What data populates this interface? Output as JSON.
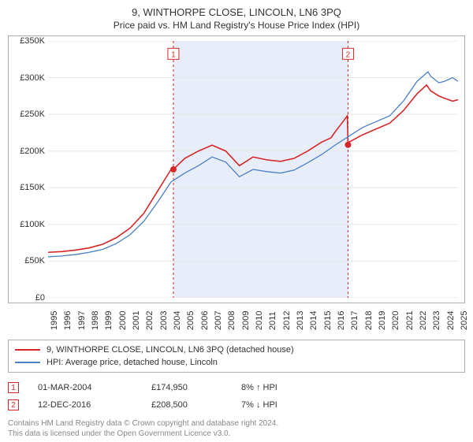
{
  "title": "9, WINTHORPE CLOSE, LINCOLN, LN6 3PQ",
  "subtitle": "Price paid vs. HM Land Registry's House Price Index (HPI)",
  "chart": {
    "background_color": "#ffffff",
    "border_color": "#b0b0b0",
    "grid_color": "#e5e5e5",
    "label_fontsize": 11,
    "x": {
      "min": 1995,
      "max": 2025,
      "ticks": [
        1995,
        1996,
        1997,
        1998,
        1999,
        2000,
        2001,
        2002,
        2003,
        2004,
        2005,
        2006,
        2007,
        2008,
        2009,
        2010,
        2011,
        2012,
        2013,
        2014,
        2015,
        2016,
        2017,
        2018,
        2019,
        2020,
        2021,
        2022,
        2023,
        2024,
        2025
      ]
    },
    "y": {
      "min": 0,
      "max": 350000,
      "ticks": [
        0,
        50000,
        100000,
        150000,
        200000,
        250000,
        300000,
        350000
      ],
      "tick_labels": [
        "£0",
        "£50K",
        "£100K",
        "£150K",
        "£200K",
        "£250K",
        "£300K",
        "£350K"
      ]
    },
    "shaded_span": {
      "from": 2004.17,
      "to": 2016.95,
      "fill": "#e8eef9"
    },
    "series": [
      {
        "name": "property",
        "color": "#d62728",
        "width": 1.6,
        "points": [
          [
            1995,
            62000
          ],
          [
            1996,
            63000
          ],
          [
            1997,
            65000
          ],
          [
            1998,
            68000
          ],
          [
            1999,
            73000
          ],
          [
            2000,
            82000
          ],
          [
            2001,
            95000
          ],
          [
            2002,
            115000
          ],
          [
            2003,
            145000
          ],
          [
            2004,
            175000
          ],
          [
            2004.17,
            175000
          ],
          [
            2005,
            190000
          ],
          [
            2006,
            200000
          ],
          [
            2007,
            208000
          ],
          [
            2008,
            200000
          ],
          [
            2009,
            180000
          ],
          [
            2010,
            192000
          ],
          [
            2011,
            188000
          ],
          [
            2012,
            186000
          ],
          [
            2013,
            190000
          ],
          [
            2014,
            200000
          ],
          [
            2015,
            212000
          ],
          [
            2015.7,
            218000
          ],
          [
            2016,
            226000
          ],
          [
            2016.5,
            238000
          ],
          [
            2016.9,
            248000
          ],
          [
            2016.95,
            208500
          ],
          [
            2017,
            212000
          ],
          [
            2018,
            222000
          ],
          [
            2019,
            230000
          ],
          [
            2020,
            238000
          ],
          [
            2021,
            255000
          ],
          [
            2022,
            278000
          ],
          [
            2022.7,
            290000
          ],
          [
            2023,
            282000
          ],
          [
            2023.6,
            275000
          ],
          [
            2024,
            272000
          ],
          [
            2024.6,
            268000
          ],
          [
            2025,
            270000
          ]
        ]
      },
      {
        "name": "hpi",
        "color": "#4a7ec9",
        "width": 1.3,
        "points": [
          [
            1995,
            56000
          ],
          [
            1996,
            57000
          ],
          [
            1997,
            59000
          ],
          [
            1998,
            62000
          ],
          [
            1999,
            66000
          ],
          [
            2000,
            74000
          ],
          [
            2001,
            86000
          ],
          [
            2002,
            104000
          ],
          [
            2003,
            130000
          ],
          [
            2004,
            158000
          ],
          [
            2005,
            170000
          ],
          [
            2006,
            180000
          ],
          [
            2007,
            192000
          ],
          [
            2008,
            185000
          ],
          [
            2009,
            165000
          ],
          [
            2010,
            175000
          ],
          [
            2011,
            172000
          ],
          [
            2012,
            170000
          ],
          [
            2013,
            174000
          ],
          [
            2014,
            184000
          ],
          [
            2015,
            195000
          ],
          [
            2016,
            208000
          ],
          [
            2017,
            220000
          ],
          [
            2018,
            232000
          ],
          [
            2019,
            240000
          ],
          [
            2020,
            248000
          ],
          [
            2021,
            268000
          ],
          [
            2022,
            295000
          ],
          [
            2022.8,
            308000
          ],
          [
            2023,
            302000
          ],
          [
            2023.6,
            293000
          ],
          [
            2024,
            295000
          ],
          [
            2024.6,
            300000
          ],
          [
            2025,
            295000
          ]
        ]
      }
    ],
    "markers": [
      {
        "x": 2004.17,
        "y": 174950,
        "label": "1",
        "border": "#d62728",
        "dash_color": "#d62728",
        "label_y": 340000
      },
      {
        "x": 2016.95,
        "y": 208500,
        "label": "2",
        "border": "#d62728",
        "dash_color": "#d62728",
        "label_y": 340000
      }
    ],
    "marker_dot": {
      "radius": 4,
      "fill": "#d62728"
    },
    "marker_box": {
      "size": 14,
      "fill": "#ffffff",
      "font_size": 10
    }
  },
  "legend": [
    {
      "color": "#d62728",
      "label": "9, WINTHORPE CLOSE, LINCOLN, LN6 3PQ (detached house)"
    },
    {
      "color": "#4a7ec9",
      "label": "HPI: Average price, detached house, Lincoln"
    }
  ],
  "sales": [
    {
      "marker": "1",
      "marker_border": "#d62728",
      "date": "01-MAR-2004",
      "price": "£174,950",
      "pct": "8% ↑ HPI"
    },
    {
      "marker": "2",
      "marker_border": "#d62728",
      "date": "12-DEC-2016",
      "price": "£208,500",
      "pct": "7% ↓ HPI"
    }
  ],
  "footer": [
    "Contains HM Land Registry data © Crown copyright and database right 2024.",
    "This data is licensed under the Open Government Licence v3.0."
  ]
}
